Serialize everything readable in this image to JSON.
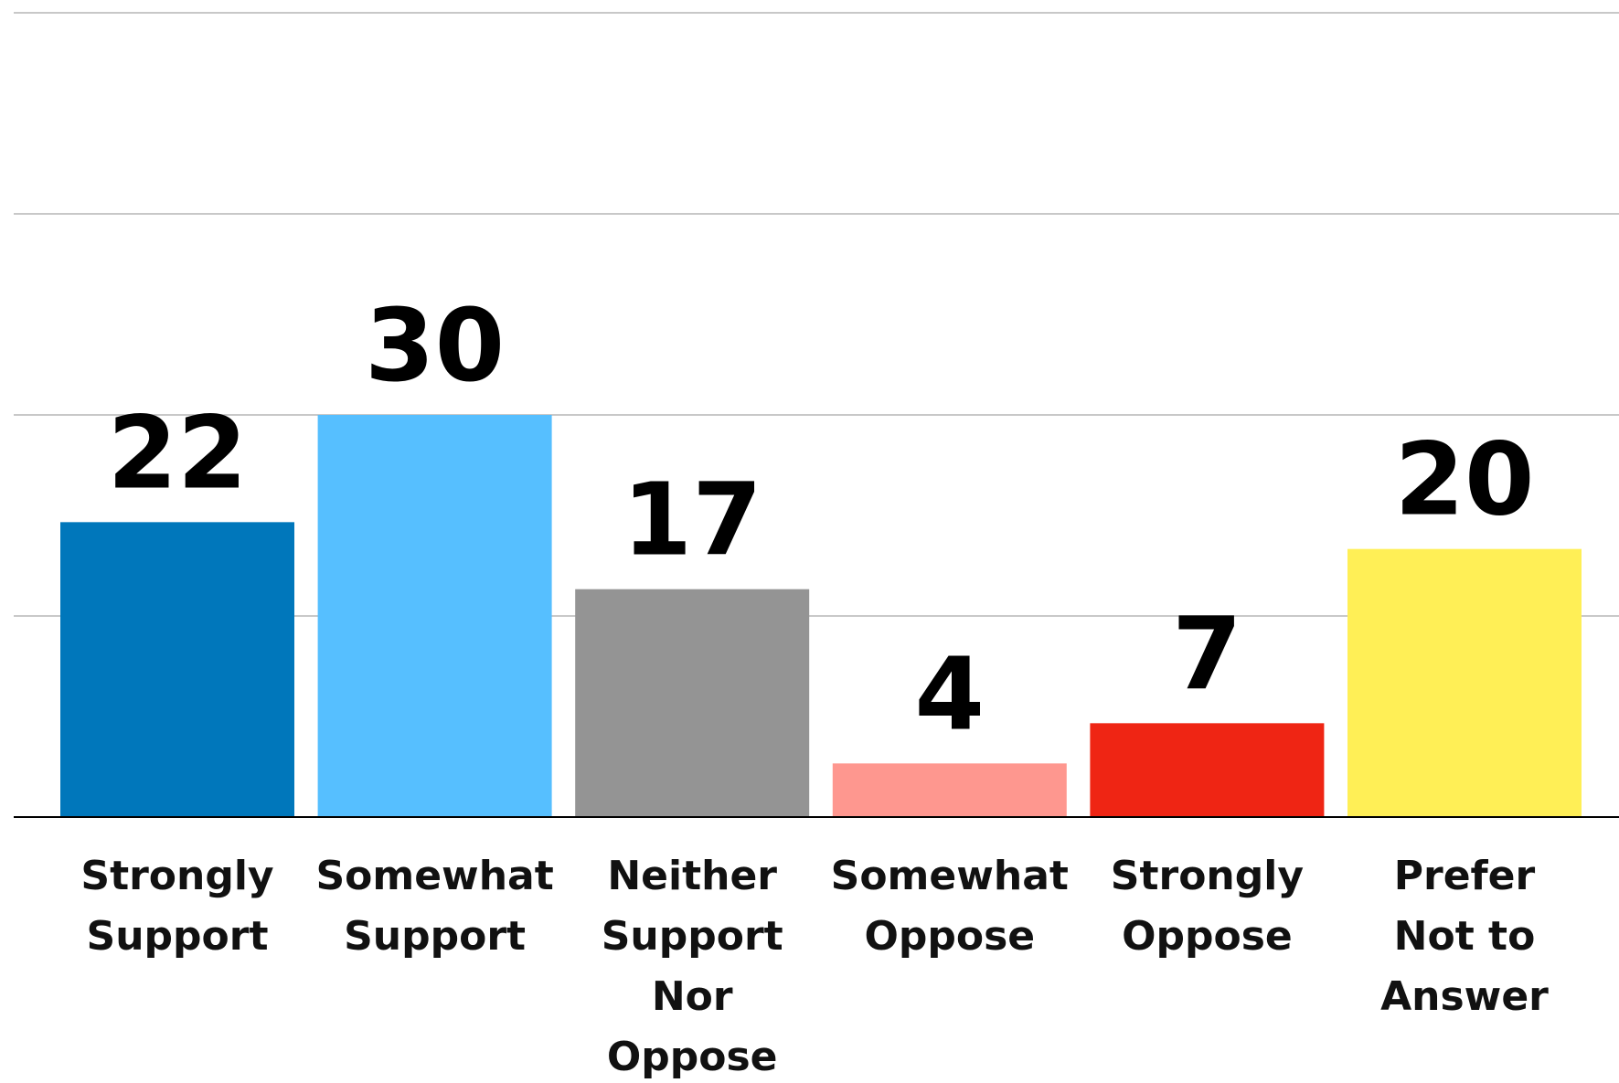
{
  "chart_data": {
    "type": "bar",
    "categories": [
      [
        "Strongly",
        "Support"
      ],
      [
        "Somewhat",
        "Support"
      ],
      [
        "Neither",
        "Support",
        "Nor",
        "Oppose"
      ],
      [
        "Somewhat",
        "Oppose"
      ],
      [
        "Strongly",
        "Oppose"
      ],
      [
        "Prefer",
        "Not to",
        "Answer"
      ]
    ],
    "values": [
      22,
      30,
      17,
      4,
      7,
      20
    ],
    "colors": [
      "#0077bb",
      "#56bfff",
      "#949494",
      "#fe978f",
      "#ef2514",
      "#ffef56"
    ],
    "ylim": [
      0,
      60
    ],
    "grid": true,
    "gridline_values": [
      15,
      30,
      45,
      60
    ],
    "title": "",
    "xlabel": "",
    "ylabel": ""
  }
}
